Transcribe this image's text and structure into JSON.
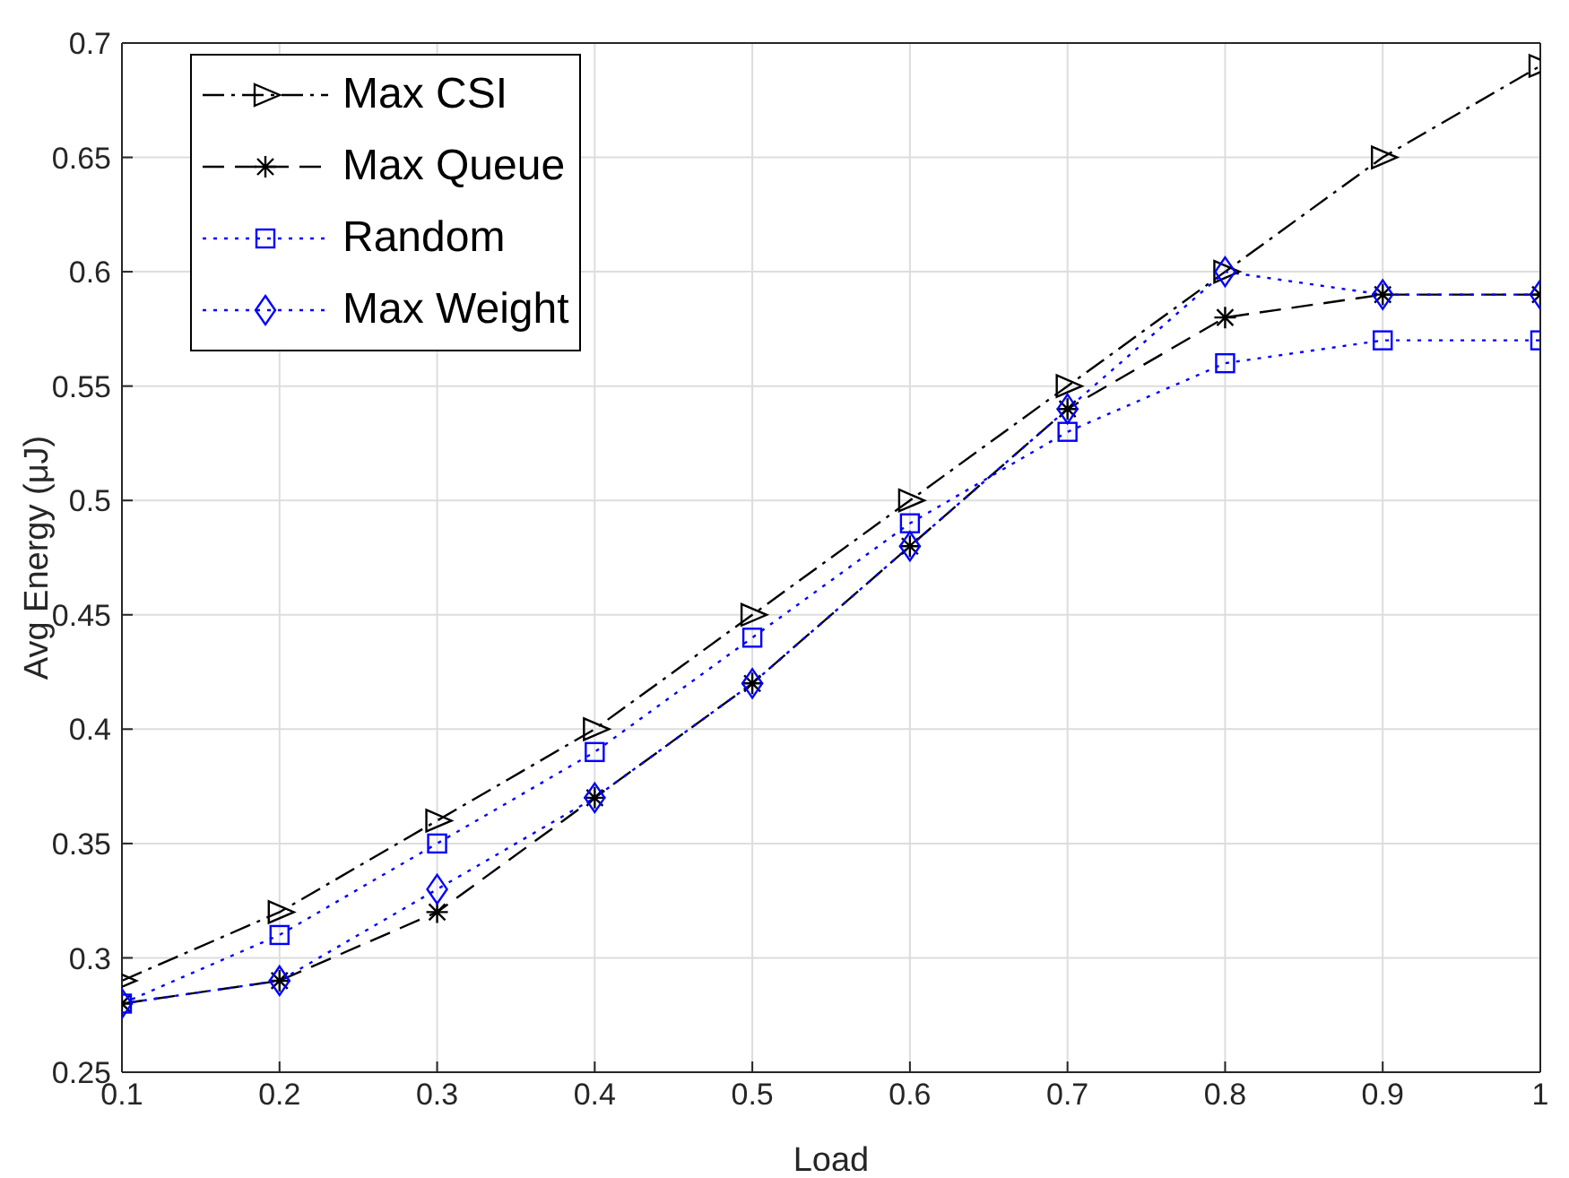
{
  "chart_data": {
    "type": "line",
    "xlabel": "Load",
    "ylabel": "Avg Energy (μJ)",
    "x": [
      0.1,
      0.2,
      0.3,
      0.4,
      0.5,
      0.6,
      0.7,
      0.8,
      0.9,
      1
    ],
    "series": [
      {
        "name": "Max CSI",
        "color": "#000000",
        "marker": "triangle",
        "line_style": "dashdot",
        "values": [
          0.29,
          0.32,
          0.36,
          0.4,
          0.45,
          0.5,
          0.55,
          0.6,
          0.65,
          0.69
        ]
      },
      {
        "name": "Max Queue",
        "color": "#000000",
        "marker": "cross",
        "line_style": "dashed",
        "values": [
          0.28,
          0.29,
          0.32,
          0.37,
          0.42,
          0.48,
          0.54,
          0.58,
          0.59,
          0.59
        ]
      },
      {
        "name": "Random",
        "color": "#0000ff",
        "marker": "square",
        "line_style": "dotted",
        "values": [
          0.28,
          0.31,
          0.35,
          0.39,
          0.44,
          0.49,
          0.53,
          0.56,
          0.57,
          0.57
        ]
      },
      {
        "name": "Max Weight",
        "color": "#0000ff",
        "marker": "diamond",
        "line_style": "dotted",
        "values": [
          0.28,
          0.29,
          0.33,
          0.37,
          0.42,
          0.48,
          0.54,
          0.6,
          0.59,
          0.59
        ]
      }
    ],
    "xlim": [
      0.1,
      1
    ],
    "xticks": [
      0.1,
      0.2,
      0.3,
      0.4,
      0.5,
      0.6,
      0.7,
      0.8,
      0.9,
      1
    ],
    "ylim": [
      0.25,
      0.7
    ],
    "yticks": [
      0.25,
      0.3,
      0.35,
      0.4,
      0.45,
      0.5,
      0.55,
      0.6,
      0.65,
      0.7
    ],
    "grid": true,
    "legend": "top left"
  }
}
